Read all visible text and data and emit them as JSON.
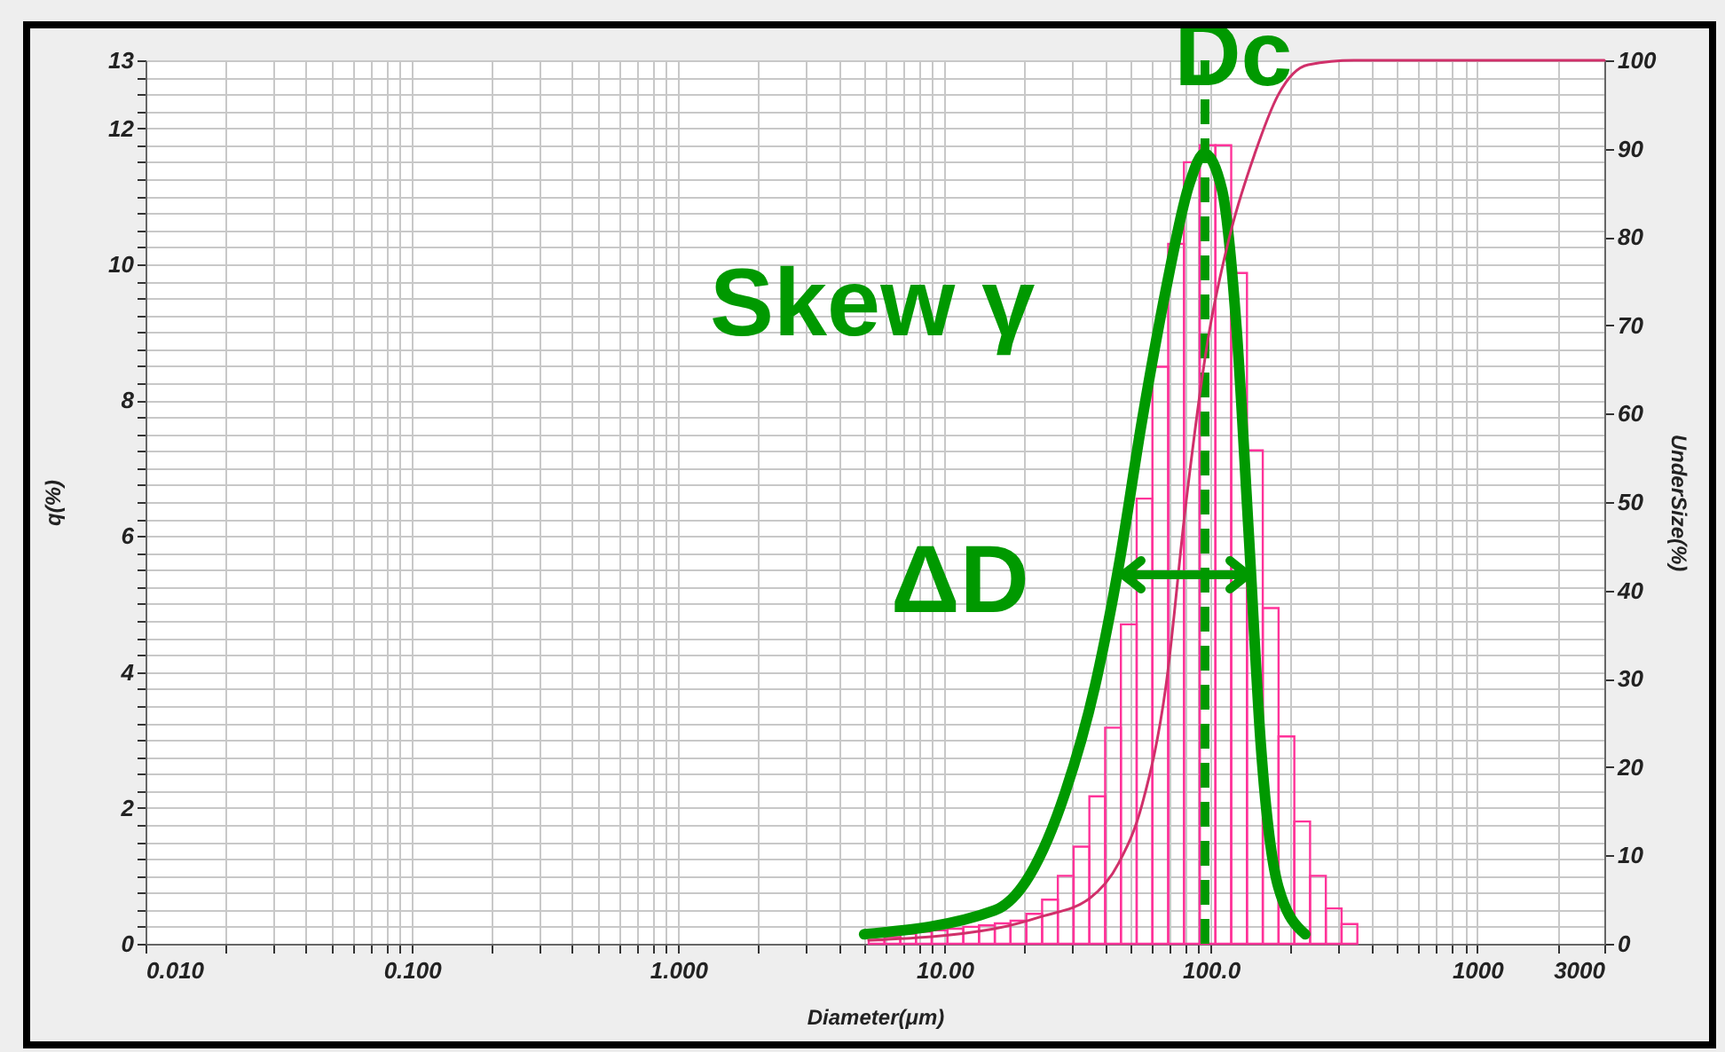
{
  "chart_data": {
    "type": "histogram",
    "xlabel": "Diameter(μm)",
    "ylabel": "q(%)",
    "y2label": "UnderSize(%)",
    "annotations": [
      "Skew γ",
      "ΔD"
    ],
    "bins": [
      5.19,
      5.95,
      6.82,
      7.81,
      8.95,
      10.26,
      11.76,
      13.47,
      15.44,
      17.69,
      20.28,
      23.24,
      26.63,
      30.52,
      34.97,
      40.08,
      45.93,
      52.64,
      60.32,
      69.13,
      79.22,
      90.79,
      104.0,
      119.2,
      136.6,
      156.6,
      179.5,
      205.7,
      235.7,
      270.1,
      309.5,
      354.7
    ],
    "series": [
      {
        "color": "#ff3399",
        "values": [
          0.05,
          0.1,
          0.15,
          0.18,
          0.2,
          0.22,
          0.25,
          0.27,
          0.3,
          0.34,
          0.44,
          0.65,
          1.0,
          1.43,
          2.17,
          3.18,
          4.7,
          6.55,
          8.49,
          10.3,
          11.5,
          11.75,
          11.75,
          9.87,
          7.26,
          4.94,
          3.05,
          1.8,
          1.0,
          0.52,
          0.29
        ]
      },
      {
        "type": "line",
        "axis": "y2",
        "color": "#d0306a",
        "x": [
          5.19,
          15.4,
          23.2,
          34.9,
          45,
          55.2,
          67.8,
          80.7,
          97,
          119,
          146,
          179,
          232,
          347,
          3000
        ],
        "values": [
          0.4,
          1.7,
          3.1,
          5.1,
          9.1,
          15.8,
          29.2,
          50,
          68,
          80.7,
          89.4,
          96.1,
          99.5,
          100,
          100
        ]
      },
      {
        "type": "line",
        "color": "#009900",
        "x": [
          4.99,
          15.4,
          20.9,
          28.4,
          36.7,
          45,
          55.2,
          67.8,
          83.2,
          94.4,
          110,
          125,
          139,
          154,
          179,
          226
        ],
        "values": [
          0.14,
          0.49,
          1.01,
          2.23,
          3.79,
          5.54,
          7.71,
          9.63,
          11.19,
          11.63,
          11.1,
          9.02,
          5.97,
          2.92,
          0.84,
          0.14
        ]
      }
    ],
    "log": "x",
    "grid": true,
    "ref_lines": [
      {
        "axis": "x",
        "value": 95,
        "label": "Dc",
        "color": "#009900",
        "line_style": "dashed"
      }
    ],
    "xlim": [
      0.01,
      3000
    ],
    "xticks": [
      {
        "value": 0.01,
        "label": "0.010"
      },
      {
        "value": 0.02,
        "label": null
      },
      {
        "value": 0.03,
        "label": null
      },
      {
        "value": 0.04,
        "label": null
      },
      {
        "value": 0.05,
        "label": null
      },
      {
        "value": 0.06,
        "label": null
      },
      {
        "value": 0.07,
        "label": null
      },
      {
        "value": 0.08,
        "label": null
      },
      {
        "value": 0.09,
        "label": null
      },
      {
        "value": 0.1,
        "label": "0.100"
      },
      {
        "value": 0.2,
        "label": null
      },
      {
        "value": 0.3,
        "label": null
      },
      {
        "value": 0.4,
        "label": null
      },
      {
        "value": 0.5,
        "label": null
      },
      {
        "value": 0.6,
        "label": null
      },
      {
        "value": 0.7,
        "label": null
      },
      {
        "value": 0.8,
        "label": null
      },
      {
        "value": 0.9,
        "label": null
      },
      {
        "value": 1,
        "label": "1.000"
      },
      {
        "value": 2,
        "label": null
      },
      {
        "value": 3,
        "label": null
      },
      {
        "value": 4,
        "label": null
      },
      {
        "value": 5,
        "label": null
      },
      {
        "value": 6,
        "label": null
      },
      {
        "value": 7,
        "label": null
      },
      {
        "value": 8,
        "label": null
      },
      {
        "value": 9,
        "label": null
      },
      {
        "value": 10,
        "label": "10.00"
      },
      {
        "value": 20,
        "label": null
      },
      {
        "value": 30,
        "label": null
      },
      {
        "value": 40,
        "label": null
      },
      {
        "value": 50,
        "label": null
      },
      {
        "value": 60,
        "label": null
      },
      {
        "value": 70,
        "label": null
      },
      {
        "value": 80,
        "label": null
      },
      {
        "value": 90,
        "label": null
      },
      {
        "value": 100,
        "label": "100.0"
      },
      {
        "value": 200,
        "label": null
      },
      {
        "value": 300,
        "label": null
      },
      {
        "value": 400,
        "label": null
      },
      {
        "value": 500,
        "label": null
      },
      {
        "value": 600,
        "label": null
      },
      {
        "value": 700,
        "label": null
      },
      {
        "value": 800,
        "label": null
      },
      {
        "value": 900,
        "label": null
      },
      1000,
      {
        "value": 2000,
        "label": null
      },
      3000
    ],
    "ylim": [
      0,
      13
    ],
    "yticks": [
      0,
      {
        "value": 0.25,
        "label": null
      },
      {
        "value": 0.5,
        "label": null
      },
      {
        "value": 0.75,
        "label": null
      },
      {
        "value": 1,
        "label": null
      },
      {
        "value": 1.25,
        "label": null
      },
      {
        "value": 1.5,
        "label": null
      },
      {
        "value": 1.75,
        "label": null
      },
      2,
      {
        "value": 2.25,
        "label": null
      },
      {
        "value": 2.5,
        "label": null
      },
      {
        "value": 2.75,
        "label": null
      },
      {
        "value": 3,
        "label": null
      },
      {
        "value": 3.25,
        "label": null
      },
      {
        "value": 3.5,
        "label": null
      },
      {
        "value": 3.75,
        "label": null
      },
      4,
      {
        "value": 4.25,
        "label": null
      },
      {
        "value": 4.5,
        "label": null
      },
      {
        "value": 4.75,
        "label": null
      },
      {
        "value": 5,
        "label": null
      },
      {
        "value": 5.25,
        "label": null
      },
      {
        "value": 5.5,
        "label": null
      },
      {
        "value": 5.75,
        "label": null
      },
      6,
      {
        "value": 6.25,
        "label": null
      },
      {
        "value": 6.5,
        "label": null
      },
      {
        "value": 6.75,
        "label": null
      },
      {
        "value": 7,
        "label": null
      },
      {
        "value": 7.25,
        "label": null
      },
      {
        "value": 7.5,
        "label": null
      },
      {
        "value": 7.75,
        "label": null
      },
      8,
      {
        "value": 8.25,
        "label": null
      },
      {
        "value": 8.5,
        "label": null
      },
      {
        "value": 8.75,
        "label": null
      },
      {
        "value": 9,
        "label": null
      },
      {
        "value": 9.25,
        "label": null
      },
      {
        "value": 9.5,
        "label": null
      },
      {
        "value": 9.75,
        "label": null
      },
      10,
      {
        "value": 10.25,
        "label": null
      },
      {
        "value": 10.5,
        "label": null
      },
      {
        "value": 10.75,
        "label": null
      },
      {
        "value": 11,
        "label": null
      },
      {
        "value": 11.25,
        "label": null
      },
      {
        "value": 11.5,
        "label": null
      },
      {
        "value": 11.75,
        "label": null
      },
      12,
      {
        "value": 12.25,
        "label": null
      },
      {
        "value": 12.5,
        "label": null
      },
      {
        "value": 12.75,
        "label": null
      },
      13
    ],
    "y2lim": [
      0,
      100
    ],
    "y2ticks": [
      0,
      10,
      20,
      30,
      40,
      50,
      60,
      70,
      80,
      90,
      100
    ]
  }
}
